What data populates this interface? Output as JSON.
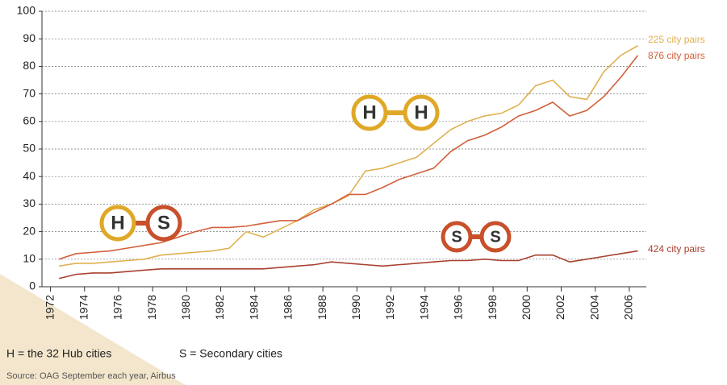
{
  "chart_data": {
    "type": "line",
    "x": [
      1972.5,
      1973.5,
      1974.5,
      1975.5,
      1976.5,
      1977.5,
      1978.5,
      1979.5,
      1980.5,
      1981.5,
      1982.5,
      1983.5,
      1984.5,
      1985.5,
      1986.5,
      1987.5,
      1988.5,
      1989.5,
      1990.5,
      1991.5,
      1992.5,
      1993.5,
      1994.5,
      1995.5,
      1996.5,
      1997.5,
      1998.5,
      1999.5,
      2000.5,
      2001.5,
      2002.5,
      2003.5,
      2004.5,
      2005.5,
      2006.5
    ],
    "series": [
      {
        "name": "225 city pairs",
        "color": "#e0b050",
        "values": [
          7.5,
          8.5,
          8.5,
          9,
          9.5,
          10,
          11.5,
          12,
          12.5,
          13,
          14,
          20,
          18,
          21,
          24,
          28,
          30,
          33,
          42,
          43,
          45,
          47,
          52,
          57,
          60,
          62,
          63,
          66,
          73,
          75,
          69,
          68,
          78,
          84,
          87.5
        ]
      },
      {
        "name": "876 city pairs",
        "color": "#d2603a",
        "values": [
          10,
          12,
          12.5,
          13,
          14,
          15,
          16,
          18,
          20,
          21.5,
          21.5,
          22,
          23,
          24,
          24,
          27,
          30,
          33.5,
          33.5,
          36,
          39,
          41,
          43,
          49,
          53,
          55,
          58,
          62,
          64,
          67,
          62,
          64,
          69,
          76,
          84
        ]
      },
      {
        "name": "424 city pairs",
        "color": "#a8402e",
        "values": [
          3,
          4.5,
          5,
          5,
          5.5,
          6,
          6.5,
          6.5,
          6.5,
          6.5,
          6.5,
          6.5,
          6.5,
          7,
          7.5,
          8,
          9,
          8.5,
          8,
          7.5,
          8,
          8.5,
          9,
          9.5,
          9.5,
          10,
          9.5,
          9.5,
          11.5,
          11.5,
          9,
          10,
          11,
          12,
          13
        ]
      }
    ],
    "xlim": [
      1971.5,
      2007
    ],
    "xticks": [
      1972,
      1974,
      1976,
      1978,
      1980,
      1982,
      1984,
      1986,
      1988,
      1990,
      1992,
      1994,
      1996,
      1998,
      2000,
      2002,
      2004,
      2006
    ],
    "ylim": [
      0,
      100
    ],
    "yticks": [
      0,
      10,
      20,
      30,
      40,
      50,
      60,
      70,
      80,
      90,
      100
    ],
    "grid": true,
    "badges": [
      [
        "H",
        "H"
      ],
      [
        "H",
        "S"
      ],
      [
        "S",
        "S"
      ]
    ],
    "legend_notes": [
      "H = the 32 Hub cities",
      "S = Secondary cities"
    ],
    "source": "Source: OAG September each year, Airbus"
  }
}
